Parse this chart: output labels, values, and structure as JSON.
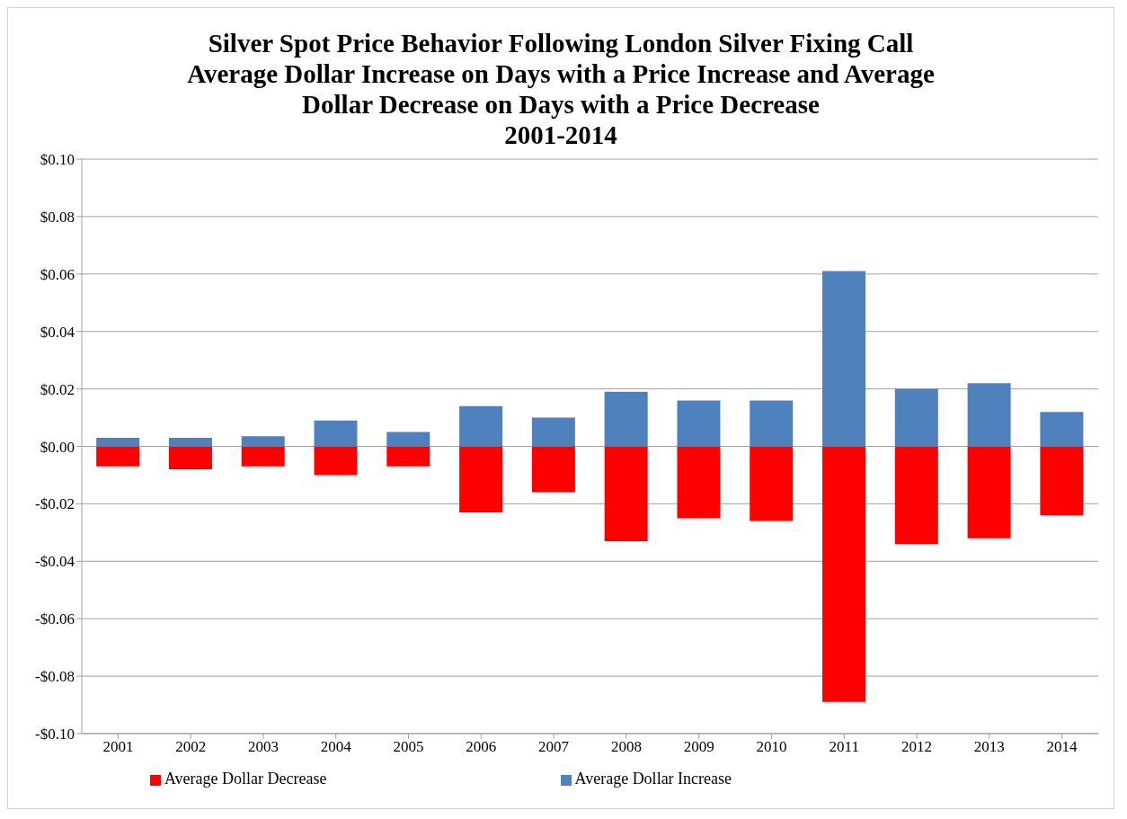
{
  "chart_data": {
    "type": "bar",
    "title": "Silver Spot Price Behavior Following London Silver Fixing Call\nAverage Dollar Increase on Days with a Price Increase and Average\nDollar Decrease on Days with a Price Decrease\n2001-2014",
    "categories": [
      "2001",
      "2002",
      "2003",
      "2004",
      "2005",
      "2006",
      "2007",
      "2008",
      "2009",
      "2010",
      "2011",
      "2012",
      "2013",
      "2014"
    ],
    "series": [
      {
        "name": "Average Dollar Decrease",
        "color": "#ff0000",
        "values": [
          -0.007,
          -0.008,
          -0.007,
          -0.01,
          -0.007,
          -0.023,
          -0.016,
          -0.033,
          -0.025,
          -0.026,
          -0.089,
          -0.034,
          -0.032,
          -0.024
        ]
      },
      {
        "name": "Average Dollar Increase",
        "color": "#4f81bd",
        "values": [
          0.003,
          0.003,
          0.0035,
          0.009,
          0.005,
          0.014,
          0.01,
          0.019,
          0.016,
          0.016,
          0.061,
          0.02,
          0.022,
          0.012
        ]
      }
    ],
    "stacked": true,
    "ylim": [
      -0.1,
      0.1
    ],
    "yticks": [
      {
        "value": -0.1,
        "label": "-$0.10"
      },
      {
        "value": -0.08,
        "label": "-$0.08"
      },
      {
        "value": -0.06,
        "label": "-$0.06"
      },
      {
        "value": -0.04,
        "label": "-$0.04"
      },
      {
        "value": -0.02,
        "label": "-$0.02"
      },
      {
        "value": 0,
        "label": "$0.00"
      },
      {
        "value": 0.02,
        "label": "$0.02"
      },
      {
        "value": 0.04,
        "label": "$0.04"
      },
      {
        "value": 0.06,
        "label": "$0.06"
      },
      {
        "value": 0.08,
        "label": "$0.08"
      },
      {
        "value": 0.1,
        "label": "$0.10"
      }
    ],
    "grid": "y",
    "legend": "bottom"
  }
}
